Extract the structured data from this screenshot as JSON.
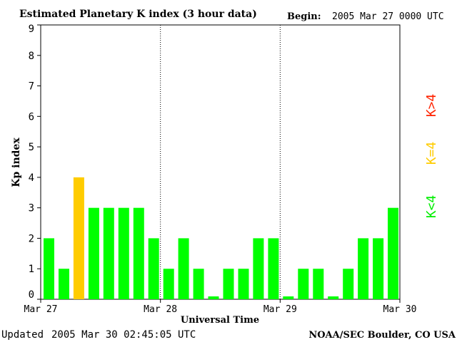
{
  "header": {
    "title": "Estimated Planetary K index (3 hour data)",
    "begin_label": "Begin:",
    "begin_value": "2005 Mar 27 0000 UTC"
  },
  "footer": {
    "updated_label": "Updated",
    "updated_value": "2005 Mar 30 02:45:05 UTC",
    "source": "NOAA/SEC Boulder, CO USA"
  },
  "legend": {
    "above": "K>4",
    "equal": "K=4",
    "below": "K<4"
  },
  "colors": {
    "below": "#00ff00",
    "equal": "#ffcc00",
    "above": "#ff2200",
    "axis": "#000000"
  },
  "chart_data": {
    "type": "bar",
    "title": "Estimated Planetary K index (3 hour data)",
    "xlabel": "Universal Time",
    "ylabel": "Kp index",
    "ylim": [
      0,
      9
    ],
    "yticks": [
      0,
      1,
      2,
      3,
      4,
      5,
      6,
      7,
      8,
      9
    ],
    "day_labels": [
      "Mar 27",
      "Mar 28",
      "Mar 29",
      "Mar 30"
    ],
    "grid": false,
    "day_separators": "dotted",
    "values": [
      2,
      1,
      4,
      3,
      3,
      3,
      3,
      2,
      1,
      2,
      1,
      0.05,
      1,
      1,
      2,
      2,
      0.05,
      1,
      1,
      0.05,
      1,
      2,
      2,
      3
    ]
  }
}
